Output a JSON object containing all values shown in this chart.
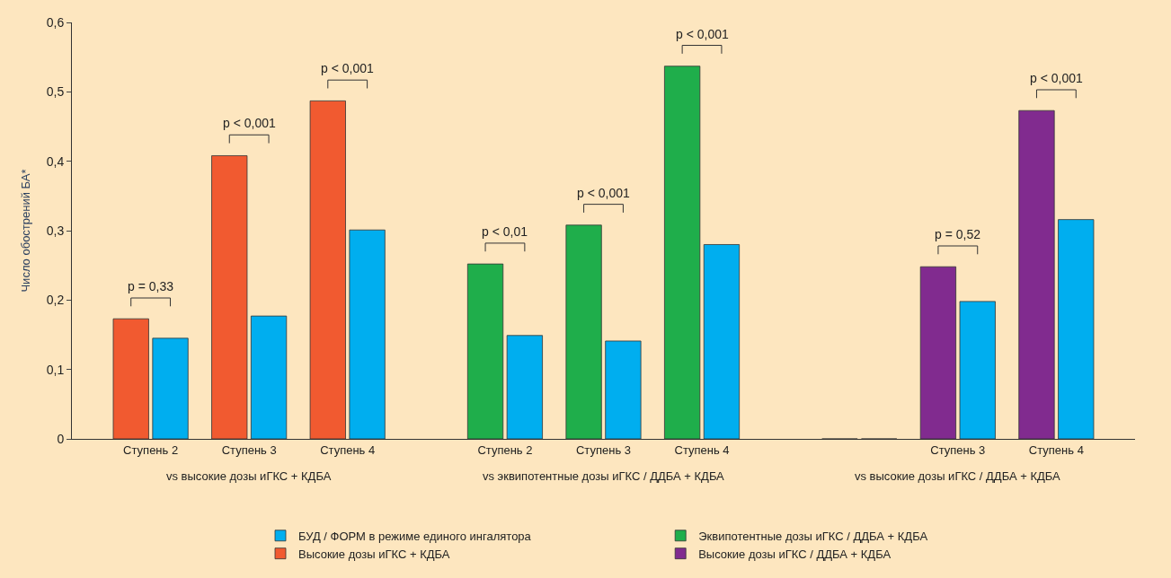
{
  "chart_data": {
    "type": "bar",
    "ylabel": "Число обострений БА*",
    "categories": [
      "Ступень 2",
      "Ступень 3",
      "Ступень 4",
      "Ступень 2",
      "Ступень 3",
      "Ступень 4",
      null,
      "Ступень 3",
      "Ступень 4"
    ],
    "series": [
      {
        "name": "БУД / ФОРМ в режиме единого ингалятора",
        "color": "#00aeef",
        "values": [
          0.145,
          0.177,
          0.301,
          0.149,
          0.141,
          0.28,
          0,
          0.198,
          0.316
        ]
      },
      {
        "name": "Эквипотентные дозы иГКС / ДДБА + КДБА",
        "color": "#1fae4b",
        "values": [
          null,
          null,
          null,
          0.252,
          0.308,
          0.537,
          null,
          null,
          null
        ]
      },
      {
        "name": "Высокие дозы иГКС + КДБА",
        "color": "#f15a30",
        "values": [
          0.173,
          0.408,
          0.487,
          null,
          null,
          null,
          null,
          null,
          null
        ]
      },
      {
        "name": "Высокие дозы иГКС / ДДБА + КДБА",
        "color": "#812b8f",
        "values": [
          null,
          null,
          null,
          null,
          null,
          null,
          0,
          0.248,
          0.473
        ]
      }
    ],
    "ylim": [
      0,
      0.6
    ],
    "yticks": [
      0,
      {
        "value": 0.1,
        "label": "0,1"
      },
      {
        "value": 0.2,
        "label": "0,2"
      },
      {
        "value": 0.3,
        "label": "0,3"
      },
      {
        "value": 0.4,
        "label": "0,4"
      },
      {
        "value": 0.5,
        "label": "0,5"
      },
      {
        "value": 0.6,
        "label": "0,6"
      }
    ],
    "grid": false,
    "legend": "bottom",
    "annotations": [
      "p = 0,33",
      "p < 0,001",
      "p < 0,001",
      "p < 0,01",
      "p < 0,001",
      "p < 0,001",
      "p = 0,52",
      "p < 0,001",
      "vs высокие дозы иГКС + КДБА",
      "vs эквипотентные дозы иГКС / ДДБА + КДБА",
      "vs высокие дозы иГКС / ДДБА + КДБА"
    ]
  }
}
